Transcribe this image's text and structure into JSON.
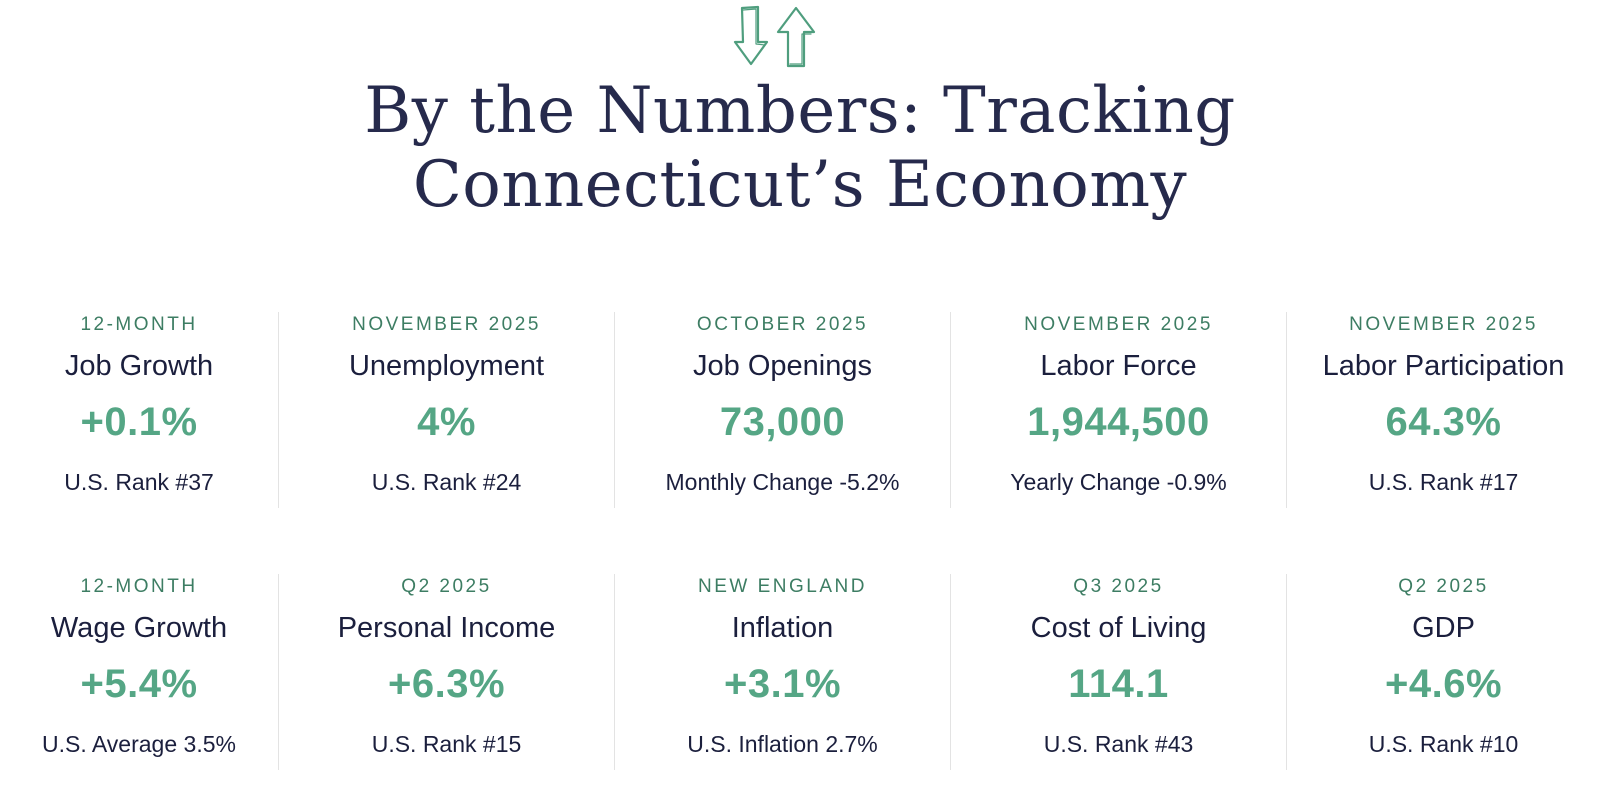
{
  "header": {
    "icon": "up-down-arrows-icon",
    "title_line1": "By the Numbers: Tracking",
    "title_line2": "Connecticut’s Economy"
  },
  "colors": {
    "title": "#262a4c",
    "period": "#3d7d63",
    "value": "#55a685",
    "text": "#1b1f3d",
    "divider": "#e3e3e3"
  },
  "rows": [
    [
      {
        "period": "12-MONTH",
        "metric": "Job Growth",
        "value": "+0.1%",
        "sub": "U.S. Rank #37"
      },
      {
        "period": "NOVEMBER 2025",
        "metric": "Unemployment",
        "value": "4%",
        "sub": "U.S. Rank #24"
      },
      {
        "period": "OCTOBER 2025",
        "metric": "Job Openings",
        "value": "73,000",
        "sub": "Monthly Change -5.2%"
      },
      {
        "period": "NOVEMBER 2025",
        "metric": "Labor Force",
        "value": "1,944,500",
        "sub": "Yearly Change -0.9%"
      },
      {
        "period": "NOVEMBER 2025",
        "metric": "Labor Participation",
        "value": "64.3%",
        "sub": "U.S. Rank #17"
      }
    ],
    [
      {
        "period": "12-MONTH",
        "metric": "Wage Growth",
        "value": "+5.4%",
        "sub": "U.S. Average 3.5%"
      },
      {
        "period": "Q2 2025",
        "metric": "Personal Income",
        "value": "+6.3%",
        "sub": "U.S. Rank #15"
      },
      {
        "period": "NEW ENGLAND",
        "metric": "Inflation",
        "value": "+3.1%",
        "sub": "U.S. Inflation 2.7%"
      },
      {
        "period": "Q3 2025",
        "metric": "Cost of Living",
        "value": "114.1",
        "sub": "U.S. Rank #43"
      },
      {
        "period": "Q2 2025",
        "metric": "GDP",
        "value": "+4.6%",
        "sub": "U.S. Rank #10"
      }
    ]
  ]
}
